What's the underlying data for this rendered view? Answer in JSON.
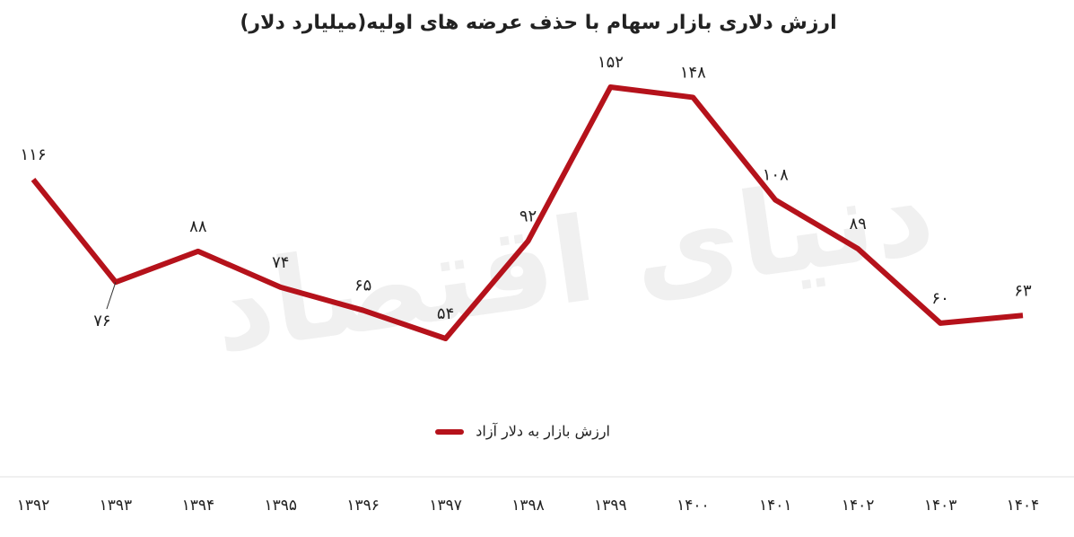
{
  "chart_data": {
    "type": "line",
    "title": "ارزش دلاری  بازار سهام با حذف عرضه های اولیه(میلیارد دلار)",
    "watermark": "دنیای اقتصاد",
    "categories": [
      "۱۳۹۲",
      "۱۳۹۳",
      "۱۳۹۴",
      "۱۳۹۵",
      "۱۳۹۶",
      "۱۳۹۷",
      "۱۳۹۸",
      "۱۳۹۹",
      "۱۴۰۰",
      "۱۴۰۱",
      "۱۴۰۲",
      "۱۴۰۳",
      "۱۴۰۴"
    ],
    "series": [
      {
        "name": "ارزش بازار به دلار آزاد",
        "color": "#b5121b",
        "values": [
          116,
          76,
          88,
          74,
          65,
          54,
          92,
          152,
          148,
          108,
          89,
          60,
          63
        ],
        "value_labels": [
          "۱۱۶",
          "۷۶",
          "۸۸",
          "۷۴",
          "۶۵",
          "۵۴",
          "۹۲",
          "۱۵۲",
          "۱۴۸",
          "۱۰۸",
          "۸۹",
          "۶۰",
          "۶۳"
        ]
      }
    ],
    "legend": "bottom"
  }
}
